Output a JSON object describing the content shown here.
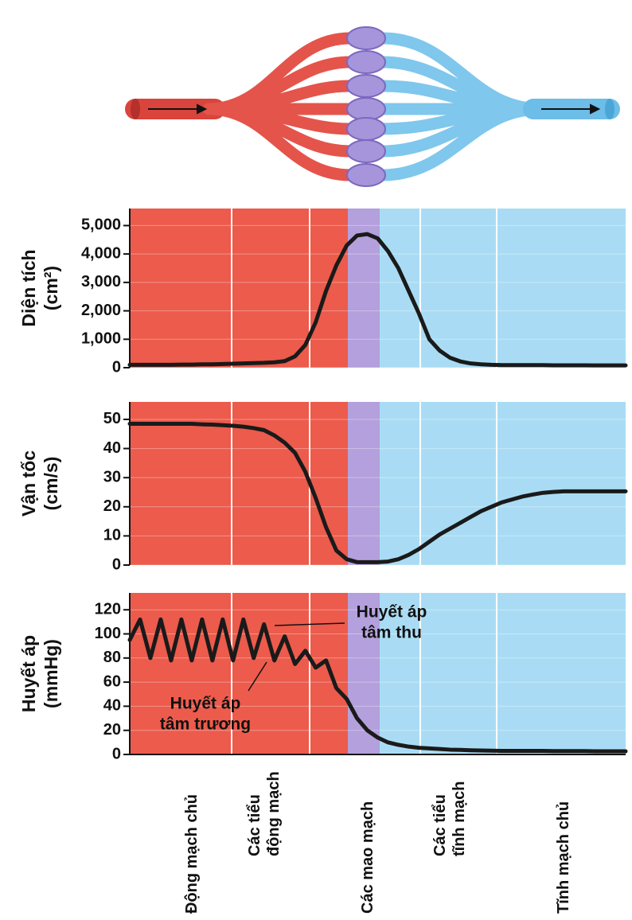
{
  "chart_data": [
    {
      "type": "line",
      "ylabel_lines": [
        "Diện tích",
        "(cm²)"
      ],
      "color": "#1a1a1a",
      "grid": true,
      "ylim": [
        0,
        5600
      ],
      "yticks": [
        0,
        {
          "value": 1000,
          "label": "1,000"
        },
        {
          "value": 2000,
          "label": "2,000"
        },
        {
          "value": 3000,
          "label": "3,000"
        },
        {
          "value": 4000,
          "label": "4,000"
        },
        {
          "value": 5000,
          "label": "5,000"
        }
      ],
      "values": [
        100,
        100,
        100,
        100,
        100,
        110,
        110,
        120,
        120,
        130,
        140,
        150,
        160,
        170,
        190,
        230,
        400,
        800,
        1600,
        2700,
        3600,
        4300,
        4650,
        4700,
        4550,
        4100,
        3500,
        2700,
        1900,
        1000,
        600,
        350,
        220,
        150,
        120,
        100,
        90,
        90,
        90,
        90,
        90,
        85,
        85,
        85,
        85,
        80,
        80,
        80,
        80
      ]
    },
    {
      "type": "line",
      "ylabel_lines": [
        "Vận tốc",
        "(cm/s)"
      ],
      "color": "#1a1a1a",
      "grid": true,
      "ylim": [
        0,
        56
      ],
      "yticks": [
        0,
        10,
        20,
        30,
        40,
        50
      ],
      "values": [
        48.5,
        48.5,
        48.5,
        48.5,
        48.5,
        48.5,
        48.5,
        48.3,
        48.2,
        48,
        47.8,
        47.5,
        47,
        46.3,
        44.5,
        42,
        38.5,
        32,
        23,
        13,
        5,
        2,
        1,
        1,
        1,
        1.2,
        2,
        3.5,
        5.5,
        8,
        10.5,
        12.5,
        14.5,
        16.5,
        18.5,
        20,
        21.5,
        22.5,
        23.5,
        24.2,
        24.8,
        25.1,
        25.3,
        25.3,
        25.3,
        25.3,
        25.3,
        25.3,
        25.3
      ]
    },
    {
      "type": "line",
      "ylabel_lines": [
        "Huyết áp",
        "(mmHg)"
      ],
      "color": "#1a1a1a",
      "grid": true,
      "ylim": [
        0,
        134
      ],
      "yticks": [
        0,
        20,
        40,
        60,
        80,
        100,
        120
      ],
      "values": [
        95,
        112,
        80,
        112,
        78,
        112,
        78,
        112,
        78,
        112,
        78,
        112,
        80,
        108,
        78,
        98,
        75,
        86,
        72,
        78,
        55,
        46,
        30,
        20,
        14,
        10,
        8,
        6.5,
        5.5,
        5,
        4.5,
        4,
        3.8,
        3.5,
        3.3,
        3.1,
        3,
        3,
        3,
        3,
        3,
        2.8,
        2.8,
        2.8,
        2.8,
        2.6,
        2.6,
        2.6,
        2.6
      ],
      "categories": [
        null,
        null,
        null,
        null,
        null,
        null,
        "Động mạch chủ",
        null,
        null,
        null,
        null,
        null,
        null,
        "Các tiểu động mạch",
        null,
        null,
        null,
        null,
        null,
        null,
        null,
        null,
        null,
        "Các mao mạch",
        null,
        null,
        null,
        null,
        null,
        null,
        null,
        "Các tiểu tĩnh mạch",
        null,
        null,
        null,
        null,
        null,
        null,
        null,
        null,
        null,
        null,
        "Tĩnh mạch chủ",
        null,
        null,
        null,
        null,
        null,
        null
      ],
      "annotations": [
        {
          "lines": [
            "Huyết áp",
            "tâm thu"
          ]
        },
        {
          "lines": [
            "Huyết áp",
            "tâm trương"
          ]
        }
      ]
    }
  ]
}
